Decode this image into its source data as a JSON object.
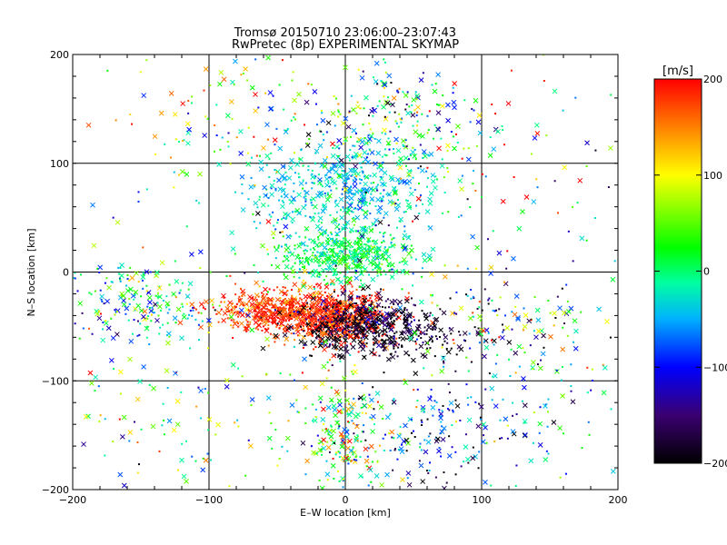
{
  "chart_data": {
    "type": "scatter",
    "title": "Tromsø 20150710 23:06:00–23:07:43",
    "subtitle": "RwPretec (8p) EXPERIMENTAL SKYMAP",
    "xlabel": "E–W location [km]",
    "ylabel": "N–S location [km]",
    "xlim": [
      -200,
      200
    ],
    "ylim": [
      -200,
      200
    ],
    "x_ticks": [
      -200,
      -100,
      0,
      100,
      200
    ],
    "y_ticks": [
      -200,
      -100,
      0,
      100,
      200
    ],
    "x_tick_labels": [
      "−200",
      "−100",
      "0",
      "100",
      "200"
    ],
    "y_tick_labels": [
      "−200",
      "−100",
      "0",
      "100",
      "200"
    ],
    "grid": true,
    "markers": [
      "x",
      "point"
    ],
    "colorbar": {
      "label": "[m/s]",
      "min": -200,
      "max": 200,
      "ticks": [
        -200,
        -100,
        0,
        100,
        200
      ],
      "tick_labels": [
        "−200",
        "−100",
        "0",
        "100",
        "200"
      ],
      "colormap": [
        "#000000",
        "#3a0070",
        "#0000ff",
        "#00b0ff",
        "#00ffa0",
        "#00ff00",
        "#ffff00",
        "#ff8000",
        "#ff0000"
      ]
    },
    "clusters": [
      {
        "name": "central-red",
        "x": -8,
        "y": -42,
        "sx": 22,
        "sy": 12,
        "count": 650,
        "vmean": 185,
        "vsd": 25
      },
      {
        "name": "west-red",
        "x": -55,
        "y": -35,
        "sx": 22,
        "sy": 10,
        "count": 380,
        "vmean": 175,
        "vsd": 30
      },
      {
        "name": "central-dark",
        "x": 15,
        "y": -45,
        "sx": 25,
        "sy": 12,
        "count": 380,
        "vmean": -175,
        "vsd": 40
      },
      {
        "name": "south-dark",
        "x": 30,
        "y": -62,
        "sx": 35,
        "sy": 10,
        "count": 180,
        "vmean": -190,
        "vsd": 20
      },
      {
        "name": "center-green",
        "x": 0,
        "y": 15,
        "sx": 25,
        "sy": 12,
        "count": 480,
        "vmean": 5,
        "vsd": 25
      },
      {
        "name": "north-cyan",
        "x": 0,
        "y": 75,
        "sx": 35,
        "sy": 22,
        "count": 480,
        "vmean": -35,
        "vsd": 25
      },
      {
        "name": "north-east-mix",
        "x": 35,
        "y": 140,
        "sx": 35,
        "sy": 25,
        "count": 220,
        "vmean": -10,
        "vsd": 90
      },
      {
        "name": "northwest-sparse",
        "x": -90,
        "y": 150,
        "sx": 45,
        "sy": 30,
        "count": 90,
        "vmean": 80,
        "vsd": 90
      },
      {
        "name": "northeast-sparse",
        "x": 110,
        "y": 100,
        "sx": 50,
        "sy": 50,
        "count": 50,
        "vmean": 40,
        "vsd": 120
      },
      {
        "name": "west-band",
        "x": -150,
        "y": -30,
        "sx": 30,
        "sy": 20,
        "count": 200,
        "vmean": -10,
        "vsd": 70
      },
      {
        "name": "east-band",
        "x": 120,
        "y": -50,
        "sx": 40,
        "sy": 30,
        "count": 140,
        "vmean": -40,
        "vsd": 110
      },
      {
        "name": "south-stripe",
        "x": 0,
        "y": -150,
        "sx": 18,
        "sy": 30,
        "count": 220,
        "vmean": 30,
        "vsd": 90
      },
      {
        "name": "southeast-blue",
        "x": 70,
        "y": -150,
        "sx": 25,
        "sy": 25,
        "count": 140,
        "vmean": -110,
        "vsd": 60
      },
      {
        "name": "southwest-sparse",
        "x": -120,
        "y": -150,
        "sx": 45,
        "sy": 30,
        "count": 80,
        "vmean": 40,
        "vsd": 90
      },
      {
        "name": "southeast-cyan",
        "x": 140,
        "y": -130,
        "sx": 30,
        "sy": 40,
        "count": 60,
        "vmean": -30,
        "vsd": 60
      },
      {
        "name": "background",
        "x": 0,
        "y": 0,
        "sx": 120,
        "sy": 120,
        "count": 300,
        "vmean": 0,
        "vsd": 120
      }
    ]
  }
}
